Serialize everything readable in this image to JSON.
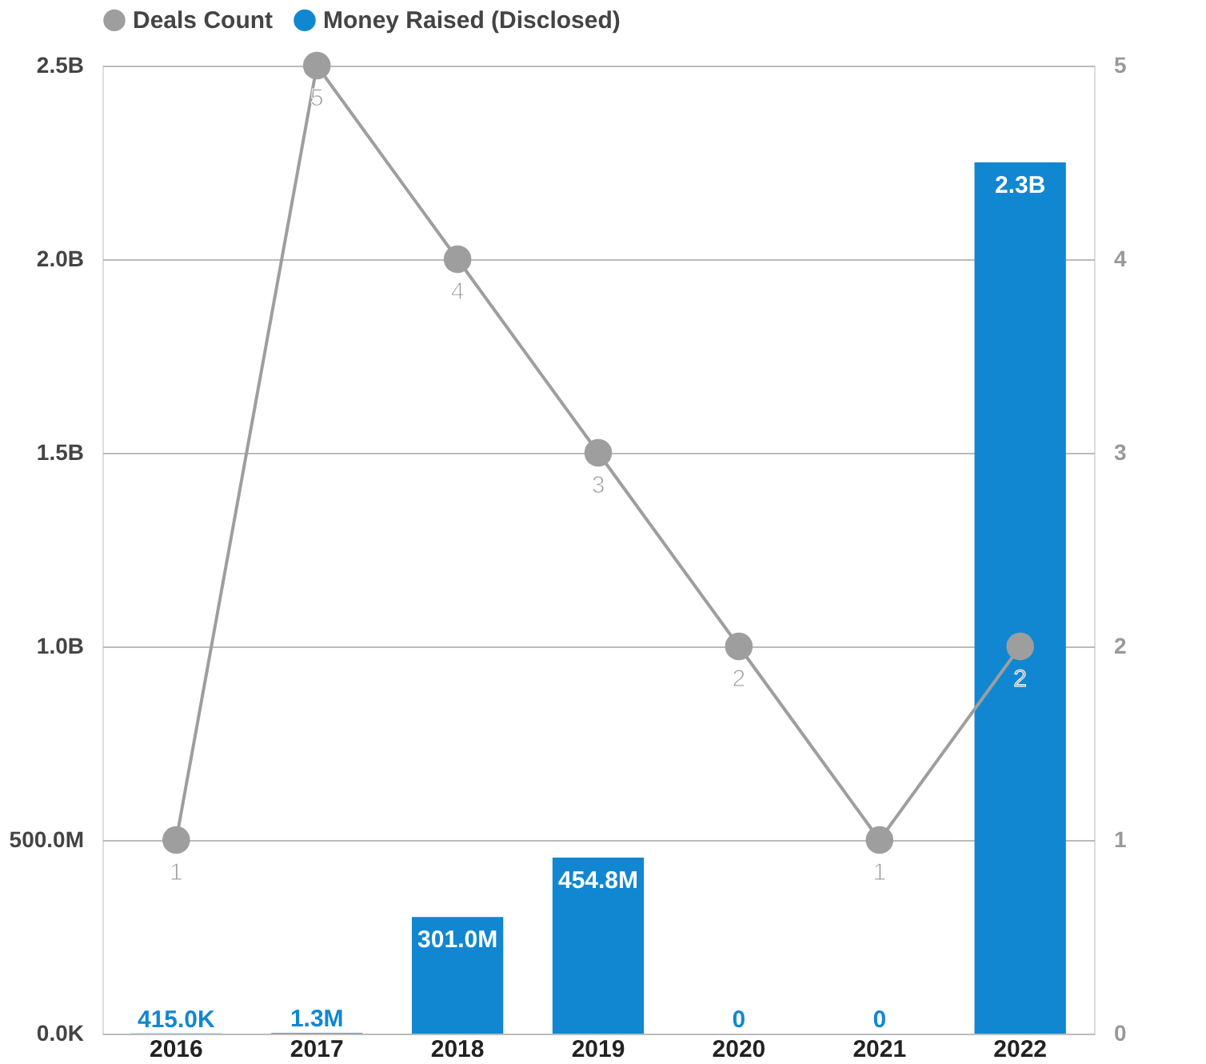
{
  "chart_data": {
    "type": "bar",
    "categories": [
      "2016",
      "2017",
      "2018",
      "2019",
      "2020",
      "2021",
      "2022"
    ],
    "series": [
      {
        "name": "Deals Count",
        "type": "line",
        "axis": "y2",
        "color": "#9e9e9e",
        "values": [
          1,
          5,
          4,
          3,
          2,
          1,
          2
        ],
        "value_labels": [
          "1",
          "5",
          "4",
          "3",
          "2",
          "1",
          "2"
        ]
      },
      {
        "name": "Money Raised (Disclosed)",
        "color": "#1187d1",
        "values": [
          415000,
          1300000,
          301000000,
          454800000,
          0,
          0,
          2250000000
        ],
        "value_labels": [
          "415.0K",
          "1.3M",
          "301.0M",
          "454.8M",
          "0",
          "0",
          "2.3B"
        ]
      }
    ],
    "ylim": [
      0,
      2500000000
    ],
    "yticks": [
      {
        "value": 0,
        "label": "0.0K"
      },
      {
        "value": 500000000,
        "label": "500.0M"
      },
      {
        "value": 1000000000,
        "label": "1.0B"
      },
      {
        "value": 1500000000,
        "label": "1.5B"
      },
      {
        "value": 2000000000,
        "label": "2.0B"
      },
      {
        "value": 2500000000,
        "label": "2.5B"
      }
    ],
    "y2lim": [
      0,
      5
    ],
    "y2ticks": [
      0,
      1,
      2,
      3,
      4,
      5
    ],
    "grid": "y",
    "legend": "top",
    "marker": "circle",
    "line_style": "solid"
  }
}
